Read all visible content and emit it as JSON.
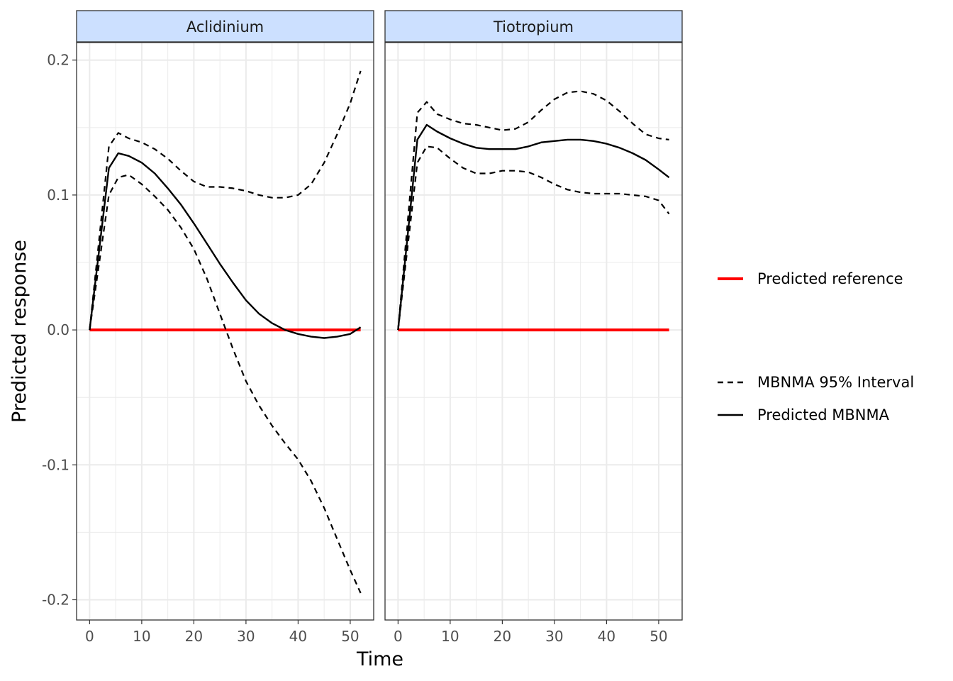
{
  "colors": {
    "reference": "#ff0000",
    "mbnma": "#000000",
    "strip_fill": "#cce0ff",
    "grid": "#ebebeb"
  },
  "legend": {
    "reference_label": "Predicted reference",
    "interval_label": "MBNMA 95% Interval",
    "mbnma_label": "Predicted MBNMA"
  },
  "chart_data": {
    "type": "line",
    "xlabel": "Time",
    "ylabel": "Predicted response",
    "xlim": [
      -2.5,
      54.5
    ],
    "ylim": [
      -0.215,
      0.213
    ],
    "x_ticks": [
      0,
      10,
      20,
      30,
      40,
      50
    ],
    "y_ticks": [
      -0.2,
      -0.1,
      0.0,
      0.1,
      0.2
    ],
    "x_tick_labels": [
      "0",
      "10",
      "20",
      "30",
      "40",
      "50"
    ],
    "y_tick_labels": [
      "-0.2",
      "-0.1",
      "0.0",
      "0.1",
      "0.2"
    ],
    "grid": true,
    "legend_position": "right",
    "panels": [
      {
        "title": "Aclidinium",
        "series": [
          {
            "name": "Predicted reference",
            "style": "solid-red",
            "x": [
              0,
              52
            ],
            "y": [
              0.0,
              0.0
            ]
          },
          {
            "name": "Predicted MBNMA",
            "style": "solid",
            "x": [
              0,
              3.7,
              5.5,
              7.5,
              10,
              12.5,
              15,
              17.5,
              20,
              22.5,
              25,
              27.5,
              30,
              32.5,
              35,
              37.5,
              40,
              42.5,
              45,
              47.5,
              50,
              52
            ],
            "y": [
              0.0,
              0.12,
              0.131,
              0.129,
              0.124,
              0.116,
              0.105,
              0.093,
              0.079,
              0.064,
              0.049,
              0.035,
              0.022,
              0.012,
              0.005,
              0.0,
              -0.003,
              -0.005,
              -0.006,
              -0.005,
              -0.003,
              0.002
            ]
          },
          {
            "name": "MBNMA 95% Interval",
            "style": "dashed",
            "x": [
              0,
              3.7,
              5.5,
              7.5,
              10,
              12.5,
              15,
              17.5,
              20,
              22.5,
              25,
              27.5,
              30,
              32.5,
              35,
              37.5,
              40,
              42.5,
              45,
              47.5,
              50,
              52
            ],
            "y": [
              0.0,
              0.136,
              0.146,
              0.142,
              0.139,
              0.134,
              0.127,
              0.118,
              0.11,
              0.106,
              0.106,
              0.105,
              0.103,
              0.1,
              0.098,
              0.098,
              0.1,
              0.108,
              0.124,
              0.145,
              0.168,
              0.192
            ]
          },
          {
            "name": "MBNMA 95% Interval",
            "style": "dashed",
            "x": [
              0,
              3.7,
              5.5,
              7.5,
              10,
              12.5,
              15,
              17.5,
              20,
              22.5,
              25,
              27.5,
              30,
              32.5,
              35,
              37.5,
              40,
              42.5,
              45,
              47.5,
              50,
              52
            ],
            "y": [
              0.0,
              0.1,
              0.113,
              0.115,
              0.108,
              0.099,
              0.089,
              0.076,
              0.06,
              0.038,
              0.012,
              -0.014,
              -0.038,
              -0.056,
              -0.071,
              -0.084,
              -0.096,
              -0.112,
              -0.132,
              -0.155,
              -0.178,
              -0.195
            ]
          }
        ]
      },
      {
        "title": "Tiotropium",
        "series": [
          {
            "name": "Predicted reference",
            "style": "solid-red",
            "x": [
              0,
              52
            ],
            "y": [
              0.0,
              0.0
            ]
          },
          {
            "name": "Predicted MBNMA",
            "style": "solid",
            "x": [
              0,
              3.7,
              5.5,
              7.5,
              10,
              12.5,
              15,
              17.5,
              20,
              22.5,
              25,
              27.5,
              30,
              32.5,
              35,
              37.5,
              40,
              42.5,
              45,
              47.5,
              50,
              52
            ],
            "y": [
              0.0,
              0.141,
              0.152,
              0.147,
              0.142,
              0.138,
              0.135,
              0.134,
              0.134,
              0.134,
              0.136,
              0.139,
              0.14,
              0.141,
              0.141,
              0.14,
              0.138,
              0.135,
              0.131,
              0.126,
              0.119,
              0.113
            ]
          },
          {
            "name": "MBNMA 95% Interval",
            "style": "dashed",
            "x": [
              0,
              3.7,
              5.5,
              7.5,
              10,
              12.5,
              15,
              17.5,
              20,
              22.5,
              25,
              27.5,
              30,
              32.5,
              35,
              37.5,
              40,
              42.5,
              45,
              47.5,
              50,
              52
            ],
            "y": [
              0.0,
              0.161,
              0.169,
              0.16,
              0.156,
              0.153,
              0.152,
              0.15,
              0.148,
              0.149,
              0.154,
              0.163,
              0.171,
              0.176,
              0.177,
              0.175,
              0.17,
              0.162,
              0.153,
              0.145,
              0.142,
              0.141
            ]
          },
          {
            "name": "MBNMA 95% Interval",
            "style": "dashed",
            "x": [
              0,
              3.7,
              5.5,
              7.5,
              10,
              12.5,
              15,
              17.5,
              20,
              22.5,
              25,
              27.5,
              30,
              32.5,
              35,
              37.5,
              40,
              42.5,
              45,
              47.5,
              50,
              52
            ],
            "y": [
              0.0,
              0.124,
              0.136,
              0.135,
              0.127,
              0.12,
              0.116,
              0.116,
              0.118,
              0.118,
              0.117,
              0.113,
              0.108,
              0.104,
              0.102,
              0.101,
              0.101,
              0.101,
              0.1,
              0.099,
              0.096,
              0.086
            ]
          }
        ]
      }
    ]
  }
}
